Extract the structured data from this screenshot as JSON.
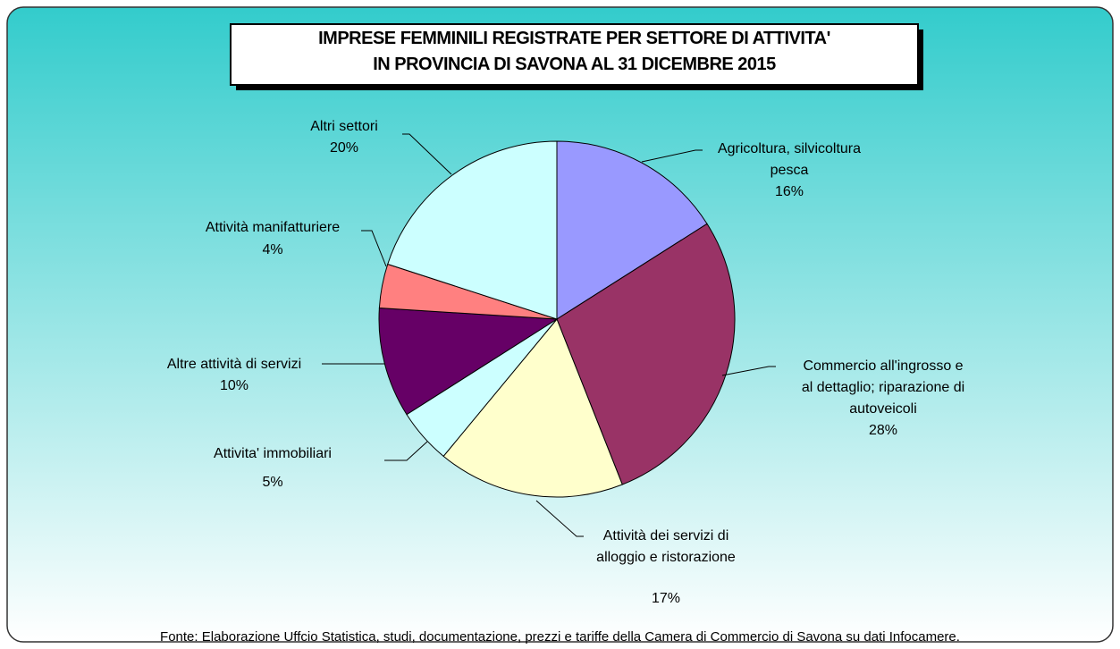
{
  "chart_data": {
    "type": "pie",
    "title": "IMPRESE FEMMINILI REGISTRATE PER SETTORE  DI ATTIVITA'\nIN PROVINCIA DI SAVONA  AL 31 DICEMBRE 2015",
    "categories": [
      "Agricoltura, silvicoltura\npesca",
      "Commercio all'ingrosso e\nal dettaglio; riparazione di\nautoveicoli",
      "Attività  dei servizi di\nalloggio e ristorazione",
      "Attivita'  immobiliari",
      "Altre attività di servizi",
      "Attività  manifatturiere",
      "Altri settori"
    ],
    "values": [
      16,
      28,
      17,
      5,
      10,
      4,
      20
    ],
    "value_labels": [
      "16%",
      "28%",
      "17%",
      "5%",
      "10%",
      "4%",
      "20%"
    ],
    "colors": [
      "#9999ff",
      "#993366",
      "#ffffcc",
      "#ccffff",
      "#660066",
      "#ff8080",
      "#ccffff"
    ],
    "source": "Fonte: Elaborazione Uffcio Statistica, studi, documentazione, prezzi e tariffe della  Camera di Commercio di Savona su dati Infocamere."
  }
}
